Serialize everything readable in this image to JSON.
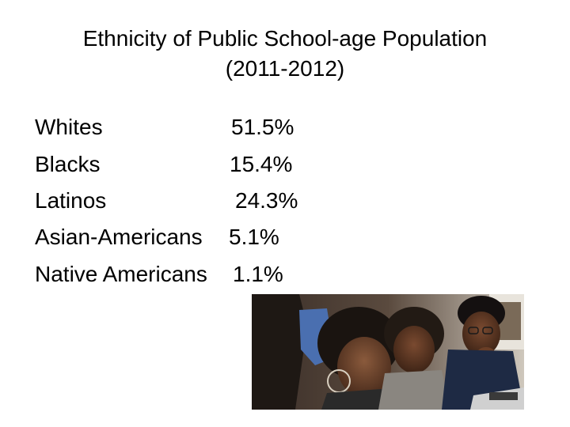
{
  "slide": {
    "title_line1": "Ethnicity of Public School-age Population",
    "title_line2": "(2011-2012)"
  },
  "stats": [
    {
      "label": "Whites",
      "value": "51.5%"
    },
    {
      "label": "Blacks",
      "value": "15.4%"
    },
    {
      "label": "Latinos",
      "value": "24.3%"
    },
    {
      "label": "Asian-Americans",
      "value": "5.1%"
    },
    {
      "label": "Native Americans",
      "value": "1.1%"
    }
  ],
  "photo": {
    "subject": "students-classroom-photo"
  }
}
